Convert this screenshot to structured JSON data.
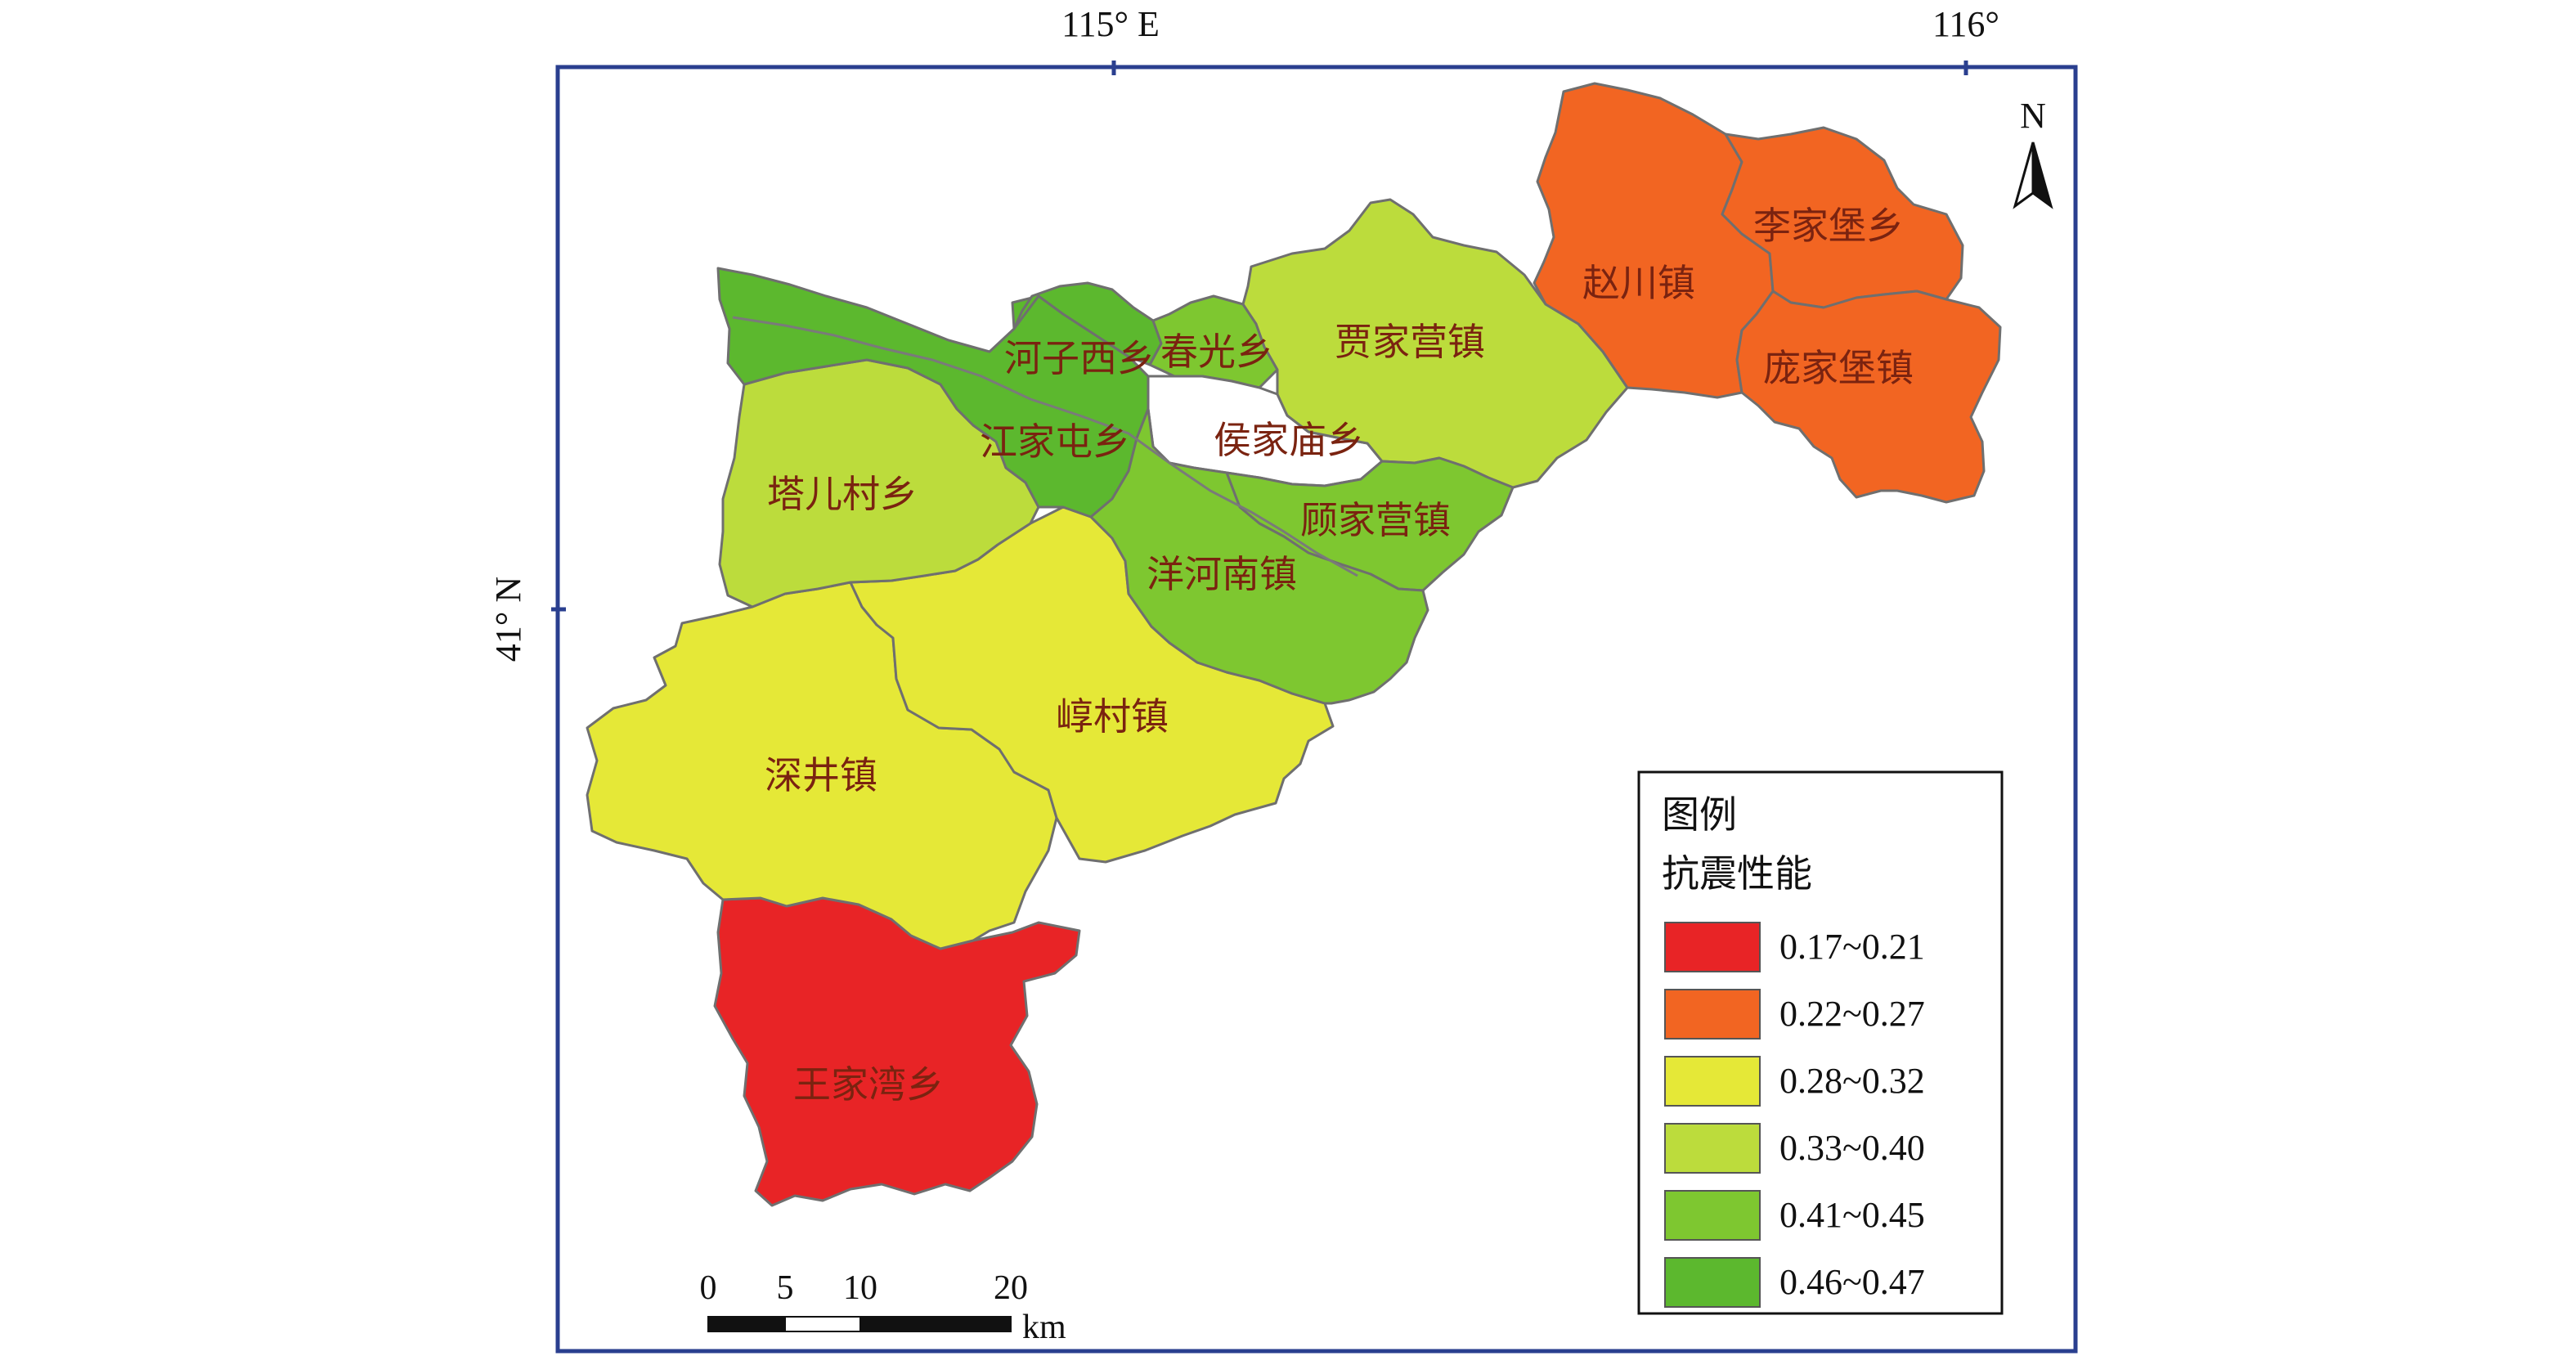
{
  "map": {
    "graticule": {
      "lon_115": "115° E",
      "lon_116": "116°",
      "lat_41": "41° N"
    },
    "north_arrow": {
      "label": "N",
      "icon": "north-arrow-icon"
    },
    "regions": [
      {
        "id": "wangjiawan",
        "name": "王家湾乡",
        "range": "0.17~0.21",
        "color": "#e82426"
      },
      {
        "id": "zhaochuan",
        "name": "赵川镇",
        "range": "0.22~0.27",
        "color": "#f26522"
      },
      {
        "id": "lijiabao",
        "name": "李家堡乡",
        "range": "0.22~0.27",
        "color": "#f26522"
      },
      {
        "id": "pangjiabao",
        "name": "庞家堡镇",
        "range": "0.22~0.27",
        "color": "#f26522"
      },
      {
        "id": "shenjing",
        "name": "深井镇",
        "range": "0.28~0.32",
        "color": "#e5e837"
      },
      {
        "id": "chuncun",
        "name": "崞村镇",
        "range": "0.28~0.32",
        "color": "#e5e837"
      },
      {
        "id": "taercun",
        "name": "塔儿村乡",
        "range": "0.33~0.40",
        "color": "#bcdc3c"
      },
      {
        "id": "jiajiaying",
        "name": "贾家营镇",
        "range": "0.33~0.40",
        "color": "#bcdc3c"
      },
      {
        "id": "chunguang",
        "name": "春光乡",
        "range": "0.41~0.45",
        "color": "#7ec730"
      },
      {
        "id": "gujiaying",
        "name": "顾家营镇",
        "range": "0.41~0.45",
        "color": "#7ec730"
      },
      {
        "id": "yanghenan",
        "name": "洋河南镇",
        "range": "0.41~0.45",
        "color": "#7ec730"
      },
      {
        "id": "hezixi",
        "name": "河子西乡",
        "range": "0.46~0.47",
        "color": "#5cb82e"
      },
      {
        "id": "jiangjiatun",
        "name": "江家屯乡",
        "range": "0.46~0.47",
        "color": "#5cb82e"
      },
      {
        "id": "houjiamiao",
        "name": "侯家庙乡",
        "range": "",
        "color": "#ffffff"
      }
    ]
  },
  "legend": {
    "title": "图例",
    "subtitle": "抗震性能",
    "items": [
      {
        "range": "0.17~0.21",
        "color": "#e82426"
      },
      {
        "range": "0.22~0.27",
        "color": "#f26522"
      },
      {
        "range": "0.28~0.32",
        "color": "#e5e837"
      },
      {
        "range": "0.33~0.40",
        "color": "#bcdc3c"
      },
      {
        "range": "0.41~0.45",
        "color": "#7ec730"
      },
      {
        "range": "0.46~0.47",
        "color": "#5cb82e"
      }
    ]
  },
  "scale_bar": {
    "ticks": [
      "0",
      "5",
      "10",
      "20"
    ],
    "unit": "km"
  },
  "colors": {
    "frame": "#2a3f8f",
    "boundary": "#6f6f6f",
    "label": "#7a2310"
  }
}
